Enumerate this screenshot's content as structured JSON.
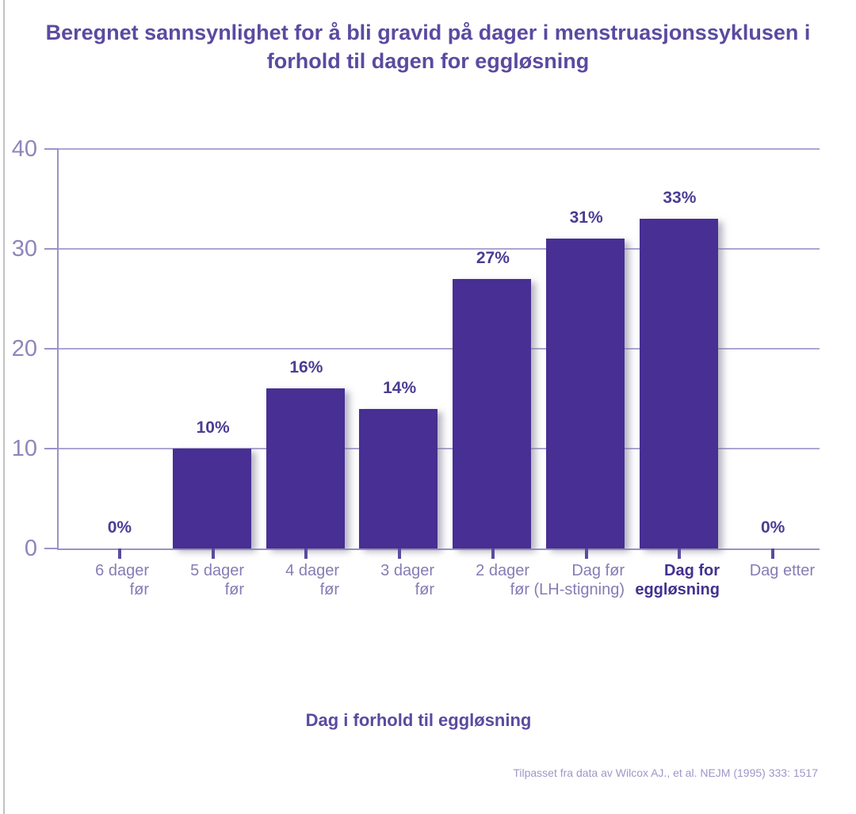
{
  "chart_data": {
    "type": "bar",
    "title": "Beregnet sannsynlighet for å bli gravid på dager i menstruasjonssyklusen i forhold til dagen for eggløsning",
    "title_lines": [
      "Beregnet sannsynlighet for å bli gravid på dager i menstruasjonssyklusen i",
      "forhold til dagen for eggløsning"
    ],
    "xlabel": "Dag i forhold til eggløsning",
    "ylabel": "",
    "source": "Tilpasset fra data av Wilcox AJ., et al. NEJM (1995) 333: 1517",
    "categories": [
      "6 dager før",
      "5 dager før",
      "4 dager før",
      "3 dager før",
      "2 dager før",
      "Dag før (LH-stigning)",
      "Dag for eggløsning",
      "Dag etter"
    ],
    "category_lines": [
      [
        "6 dager",
        "før"
      ],
      [
        "5 dager",
        "før"
      ],
      [
        "4 dager",
        "før"
      ],
      [
        "3 dager",
        "før"
      ],
      [
        "2 dager",
        "før"
      ],
      [
        "Dag før",
        "(LH-stigning)"
      ],
      [
        "Dag for",
        "eggløsning"
      ],
      [
        "Dag etter"
      ]
    ],
    "values": [
      0,
      10,
      16,
      14,
      27,
      31,
      33,
      0
    ],
    "value_labels": [
      "0%",
      "10%",
      "16%",
      "14%",
      "27%",
      "31%",
      "33%",
      "0%"
    ],
    "bold_category_index": 6,
    "ylim": [
      0,
      40
    ],
    "yticks": [
      0,
      10,
      20,
      30,
      40
    ],
    "grid": true,
    "legend": false,
    "colors": {
      "bar": "#472f93",
      "grid": "#aca6d2",
      "axis": "#9a93c5",
      "title": "#5b4aa0",
      "y_tick_label": "#8d86ba",
      "value_label": "#4c3c93",
      "category_label": "#847db5",
      "category_bold": "#43318f",
      "x_tick": "#5b4a9e",
      "source": "#9d97c9",
      "page_border": "#c2c2c2"
    }
  }
}
